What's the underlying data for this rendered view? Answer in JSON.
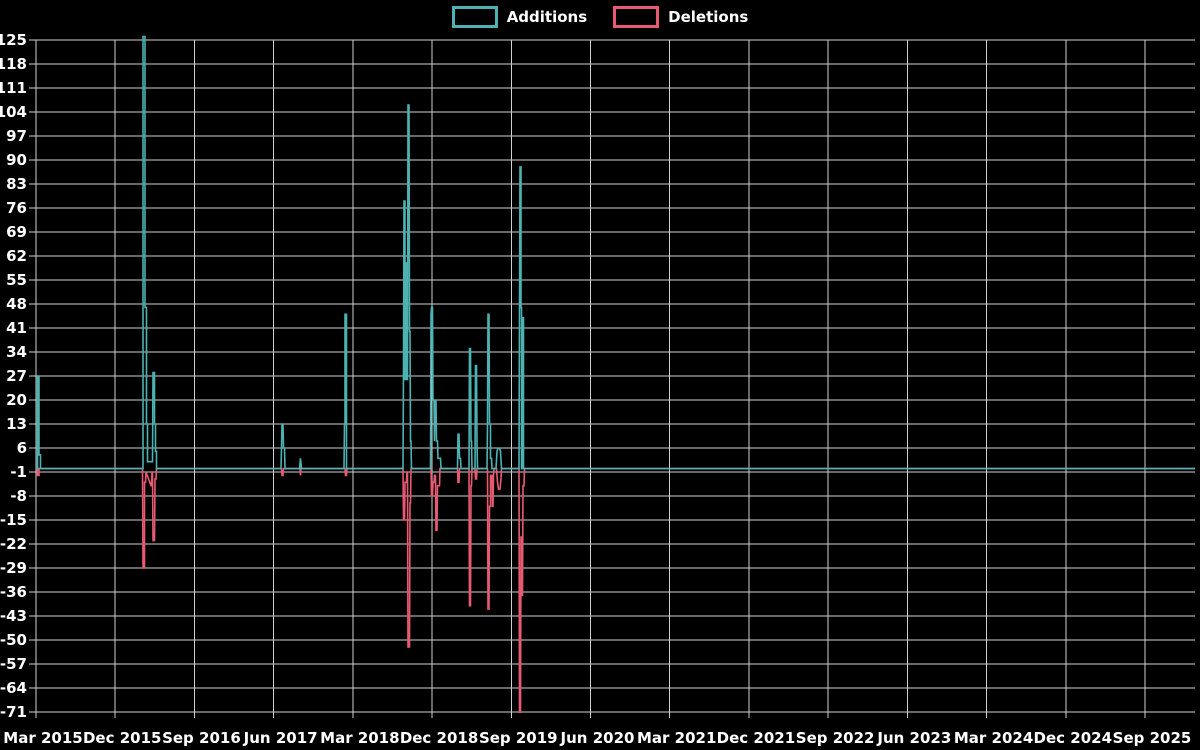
{
  "page": {
    "background_color": "#000000",
    "text_color": "#ffffff",
    "grid_color": "#cfcfcf"
  },
  "legend": {
    "items": [
      {
        "label": "Additions",
        "color": "#4db2b2"
      },
      {
        "label": "Deletions",
        "color": "#e85a72"
      }
    ]
  },
  "chart_data": {
    "type": "line",
    "title": "",
    "xlabel": "",
    "ylabel": "",
    "grid": true,
    "legend_position": "top-center",
    "ylim": [
      -71,
      125
    ],
    "y_tick_step": 7,
    "y_axis": {
      "tick_labels": [
        "125",
        "118",
        "111",
        "104",
        "97",
        "90",
        "83",
        "76",
        "69",
        "62",
        "55",
        "48",
        "41",
        "34",
        "27",
        "20",
        "13",
        "6",
        "-1",
        "-8",
        "-15",
        "-22",
        "-29",
        "-36",
        "-43",
        "-50",
        "-57",
        "-64",
        "-71"
      ]
    },
    "x_axis": {
      "tick_labels": [
        "Mar 2015",
        "Dec 2015",
        "Sep 2016",
        "Jun 2017",
        "Mar 2018",
        "Dec 2018",
        "Sep 2019",
        "Jun 2020",
        "Mar 2021",
        "Dec 2021",
        "Sep 2022",
        "Jun 2023",
        "Mar 2024",
        "Dec 2024",
        "Sep 2025"
      ]
    },
    "series": [
      {
        "name": "Additions",
        "color": "#4db2b2",
        "points": [
          [
            36,
            0
          ],
          [
            37.5,
            0
          ],
          [
            37.5,
            27
          ],
          [
            39,
            27
          ],
          [
            39,
            4
          ],
          [
            40.5,
            4
          ],
          [
            40.5,
            0
          ],
          [
            143,
            0
          ],
          [
            143,
            126
          ],
          [
            145,
            126
          ],
          [
            145,
            47
          ],
          [
            146.5,
            47
          ],
          [
            146.5,
            13
          ],
          [
            147.5,
            13
          ],
          [
            147.5,
            2
          ],
          [
            152.5,
            2
          ],
          [
            153,
            28
          ],
          [
            154.5,
            28
          ],
          [
            154.5,
            13
          ],
          [
            155.5,
            13
          ],
          [
            155.5,
            5
          ],
          [
            156.5,
            5
          ],
          [
            156.5,
            0
          ],
          [
            281,
            0
          ],
          [
            281.5,
            6
          ],
          [
            282,
            13
          ],
          [
            283,
            13
          ],
          [
            283.5,
            6
          ],
          [
            284.5,
            6
          ],
          [
            285,
            0
          ],
          [
            299.5,
            0
          ],
          [
            300.5,
            3
          ],
          [
            301.5,
            0
          ],
          [
            344,
            0
          ],
          [
            344.5,
            13
          ],
          [
            345,
            13
          ],
          [
            345,
            45
          ],
          [
            346.5,
            45
          ],
          [
            346.5,
            0
          ],
          [
            403,
            0
          ],
          [
            403.5,
            30
          ],
          [
            404,
            78
          ],
          [
            405,
            78
          ],
          [
            405,
            26
          ],
          [
            406,
            26
          ],
          [
            406,
            60
          ],
          [
            406.5,
            60
          ],
          [
            407,
            26
          ],
          [
            407.5,
            26
          ],
          [
            408,
            106
          ],
          [
            409,
            106
          ],
          [
            409.5,
            40
          ],
          [
            410,
            40
          ],
          [
            410.5,
            8
          ],
          [
            411,
            8
          ],
          [
            411.5,
            0
          ],
          [
            430.5,
            0
          ],
          [
            431,
            45
          ],
          [
            431.5,
            47
          ],
          [
            432.5,
            47
          ],
          [
            433,
            20
          ],
          [
            434,
            20
          ],
          [
            434.5,
            8
          ],
          [
            435,
            20
          ],
          [
            436,
            20
          ],
          [
            436.5,
            8
          ],
          [
            437.5,
            8
          ],
          [
            438,
            3
          ],
          [
            440.5,
            3
          ],
          [
            441,
            0
          ],
          [
            457.5,
            0
          ],
          [
            458,
            10
          ],
          [
            459,
            10
          ],
          [
            459.5,
            3
          ],
          [
            460.5,
            3
          ],
          [
            461,
            0
          ],
          [
            469,
            0
          ],
          [
            469.5,
            35
          ],
          [
            470.5,
            35
          ],
          [
            471,
            8
          ],
          [
            471.5,
            8
          ],
          [
            472,
            0
          ],
          [
            475,
            0
          ],
          [
            475.5,
            30
          ],
          [
            476.5,
            30
          ],
          [
            477,
            8
          ],
          [
            477.5,
            0
          ],
          [
            487,
            0
          ],
          [
            487.5,
            13
          ],
          [
            488,
            45
          ],
          [
            489,
            45
          ],
          [
            489.5,
            13
          ],
          [
            490.5,
            13
          ],
          [
            490.5,
            3
          ],
          [
            491.5,
            3
          ],
          [
            492,
            0
          ],
          [
            496,
            0
          ],
          [
            497,
            5
          ],
          [
            498,
            6
          ],
          [
            499.5,
            6
          ],
          [
            500.5,
            5
          ],
          [
            501.5,
            0
          ],
          [
            519,
            0
          ],
          [
            519.5,
            47
          ],
          [
            520,
            88
          ],
          [
            521,
            88
          ],
          [
            521,
            47
          ],
          [
            521.5,
            47
          ],
          [
            521.5,
            0
          ],
          [
            522.5,
            0
          ],
          [
            522.5,
            44
          ],
          [
            523.5,
            44
          ],
          [
            523.5,
            0
          ],
          [
            1195,
            0
          ]
        ]
      },
      {
        "name": "Deletions",
        "color": "#e85a72",
        "points": [
          [
            36,
            0
          ],
          [
            37.5,
            0
          ],
          [
            37.5,
            -2
          ],
          [
            39,
            -2
          ],
          [
            39,
            0
          ],
          [
            142.5,
            0
          ],
          [
            143,
            -29
          ],
          [
            144.5,
            -29
          ],
          [
            144.5,
            -4
          ],
          [
            145.5,
            -4
          ],
          [
            146,
            -1
          ],
          [
            151,
            -5
          ],
          [
            151.5,
            -5
          ],
          [
            152,
            -1
          ],
          [
            152.5,
            -1
          ],
          [
            153,
            -21
          ],
          [
            154.5,
            -21
          ],
          [
            155,
            -3
          ],
          [
            156,
            -3
          ],
          [
            156.5,
            0
          ],
          [
            281.5,
            0
          ],
          [
            282,
            -2
          ],
          [
            283,
            -2
          ],
          [
            283.5,
            0
          ],
          [
            300,
            0
          ],
          [
            300.5,
            -2
          ],
          [
            301,
            0
          ],
          [
            345,
            0
          ],
          [
            345.5,
            -2
          ],
          [
            346.5,
            -2
          ],
          [
            347,
            0
          ],
          [
            403,
            0
          ],
          [
            403.5,
            -15
          ],
          [
            404.5,
            -15
          ],
          [
            405,
            -4
          ],
          [
            406.5,
            -4
          ],
          [
            407,
            -1
          ],
          [
            407.5,
            -1
          ],
          [
            408,
            -52
          ],
          [
            409.5,
            -52
          ],
          [
            410,
            -10
          ],
          [
            410.5,
            -10
          ],
          [
            411,
            0
          ],
          [
            431,
            0
          ],
          [
            431.5,
            -8
          ],
          [
            432.5,
            -8
          ],
          [
            433,
            -4
          ],
          [
            434,
            -4
          ],
          [
            434.5,
            -2
          ],
          [
            435.5,
            -2
          ],
          [
            436,
            -18
          ],
          [
            437,
            -18
          ],
          [
            437.5,
            -5
          ],
          [
            439.5,
            -5
          ],
          [
            440,
            0
          ],
          [
            457.5,
            0
          ],
          [
            458,
            -4
          ],
          [
            459,
            -4
          ],
          [
            459.5,
            0
          ],
          [
            469,
            0
          ],
          [
            469.5,
            -40
          ],
          [
            470.5,
            -40
          ],
          [
            471,
            -5
          ],
          [
            471.5,
            -5
          ],
          [
            472,
            0
          ],
          [
            475,
            0
          ],
          [
            475.5,
            -3
          ],
          [
            476.5,
            -3
          ],
          [
            477,
            0
          ],
          [
            487.5,
            0
          ],
          [
            488,
            -41
          ],
          [
            489,
            -41
          ],
          [
            489.5,
            -11
          ],
          [
            490.5,
            -11
          ],
          [
            490.5,
            -2
          ],
          [
            492,
            -2
          ],
          [
            492.5,
            -11
          ],
          [
            493,
            -11
          ],
          [
            493.5,
            -2
          ],
          [
            494,
            0
          ],
          [
            496.5,
            0
          ],
          [
            497.5,
            -4
          ],
          [
            498.5,
            -6
          ],
          [
            500,
            -6
          ],
          [
            501,
            -3
          ],
          [
            501.5,
            0
          ],
          [
            519,
            0
          ],
          [
            519.5,
            -72
          ],
          [
            520.5,
            -72
          ],
          [
            521,
            -20
          ],
          [
            521.5,
            -20
          ],
          [
            522,
            -37
          ],
          [
            522.5,
            -37
          ],
          [
            523,
            -5
          ],
          [
            524,
            -5
          ],
          [
            524.5,
            0
          ],
          [
            1195,
            0
          ]
        ]
      }
    ]
  }
}
